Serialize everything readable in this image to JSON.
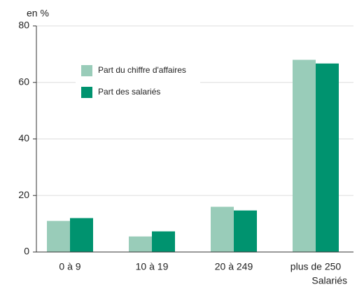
{
  "chart_data": {
    "type": "bar",
    "unit_label": "en %",
    "x_label": "Salariés",
    "categories": [
      "0 à 9",
      "10 à 19",
      "20 à 249",
      "plus de 250"
    ],
    "series": [
      {
        "name": "Part du chiffre d'affaires",
        "color": "#99ccb9",
        "values": [
          11,
          5.5,
          16,
          68
        ]
      },
      {
        "name": "Part des salariés",
        "color": "#00936f",
        "values": [
          12,
          7.3,
          14.7,
          66.7
        ]
      }
    ],
    "ylim": [
      0,
      80
    ],
    "yticks": [
      0,
      20,
      40,
      60,
      80
    ],
    "grid": true,
    "legend": "upper left"
  }
}
